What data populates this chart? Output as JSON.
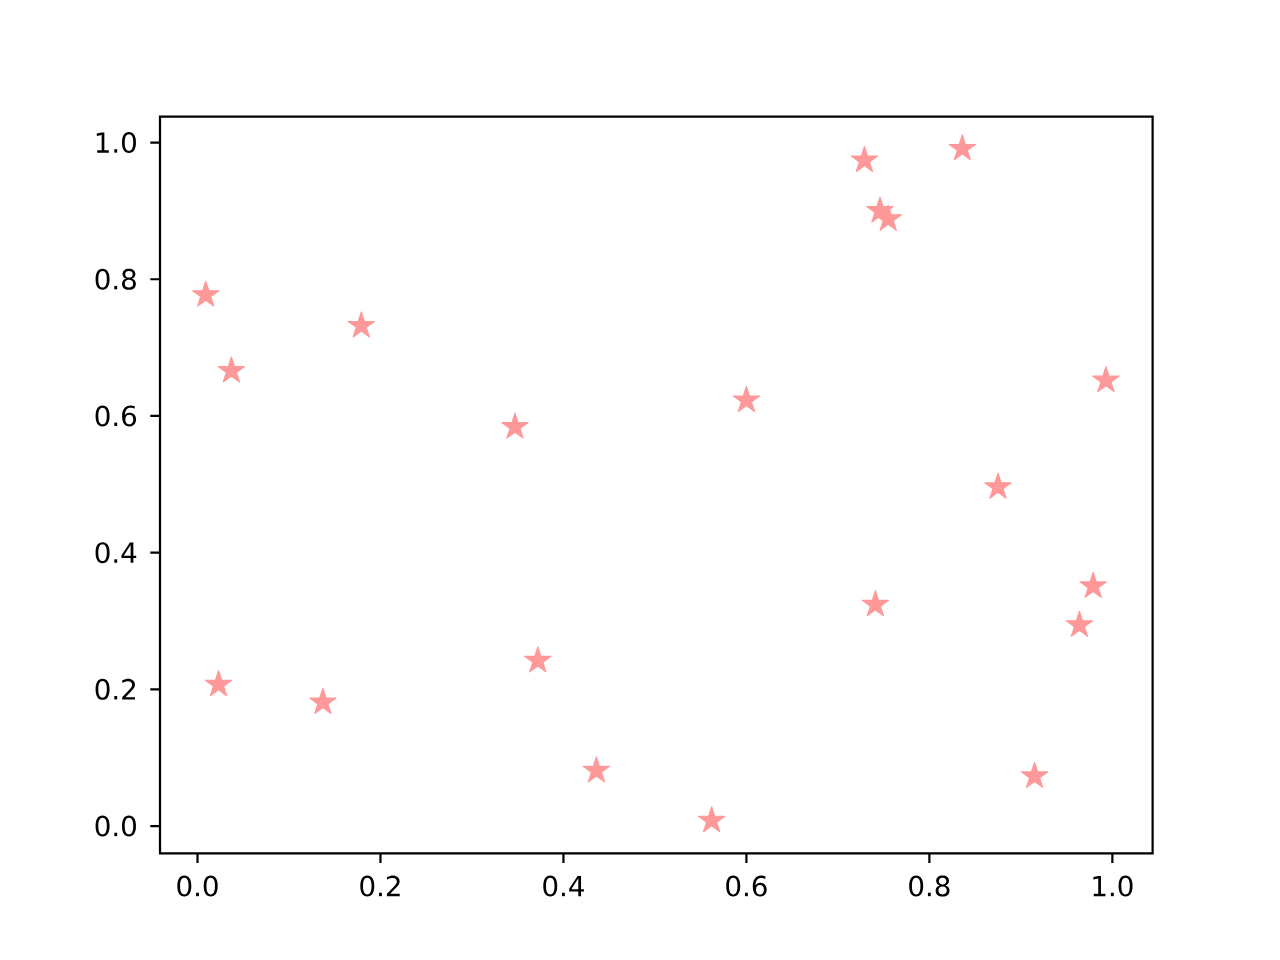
{
  "chart_data": {
    "type": "scatter",
    "color": "#ff9999",
    "marker": "star",
    "x": [
      0.009,
      0.037,
      0.179,
      0.347,
      0.729,
      0.836,
      0.746,
      0.755,
      0.6,
      0.993,
      0.875,
      0.023,
      0.137,
      0.372,
      0.436,
      0.562,
      0.741,
      0.979,
      0.964,
      0.915
    ],
    "values": [
      0.777,
      0.666,
      0.732,
      0.584,
      0.974,
      0.991,
      0.9,
      0.888,
      0.623,
      0.652,
      0.496,
      0.207,
      0.181,
      0.242,
      0.081,
      0.008,
      0.324,
      0.351,
      0.294,
      0.073
    ],
    "xlim": [
      -0.041,
      1.044
    ],
    "ylim": [
      -0.04,
      1.038
    ],
    "xticks": [
      {
        "value": 0.0,
        "label": "0.0"
      },
      {
        "value": 0.2,
        "label": "0.2"
      },
      {
        "value": 0.4,
        "label": "0.4"
      },
      {
        "value": 0.6,
        "label": "0.6"
      },
      {
        "value": 0.8,
        "label": "0.8"
      },
      {
        "value": 1.0,
        "label": "1.0"
      }
    ],
    "yticks": [
      {
        "value": 0.0,
        "label": "0.0"
      },
      {
        "value": 0.2,
        "label": "0.2"
      },
      {
        "value": 0.4,
        "label": "0.4"
      },
      {
        "value": 0.6,
        "label": "0.6"
      },
      {
        "value": 0.8,
        "label": "0.8"
      },
      {
        "value": 1.0,
        "label": "1.0"
      }
    ]
  }
}
